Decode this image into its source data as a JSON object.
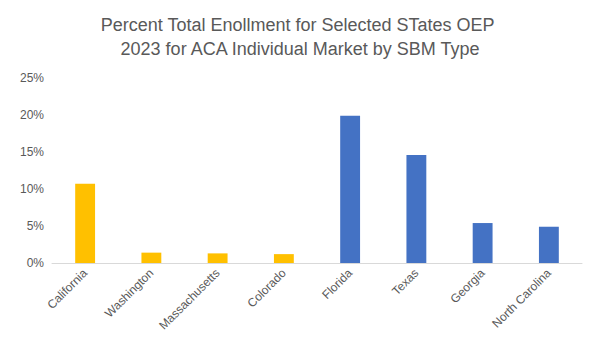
{
  "chart_data": {
    "type": "bar",
    "title": "Percent Total Enollment for Selected STates OEP 2023 for ACA Individual Market by SBM Type",
    "categories": [
      "California",
      "Washington",
      "Massachusetts",
      "Colorado",
      "Florida",
      "Texas",
      "Georgia",
      "North Carolina"
    ],
    "values": [
      10.7,
      1.4,
      1.3,
      1.2,
      19.9,
      14.6,
      5.4,
      4.9
    ],
    "colors": [
      "#ffc000",
      "#ffc000",
      "#ffc000",
      "#ffc000",
      "#4472c4",
      "#4472c4",
      "#4472c4",
      "#4472c4"
    ],
    "ylim": [
      0,
      25
    ],
    "yticks": [
      {
        "value": 0,
        "label": "0%"
      },
      {
        "value": 5,
        "label": "5%"
      },
      {
        "value": 10,
        "label": "10%"
      },
      {
        "value": 15,
        "label": "15%"
      },
      {
        "value": 20,
        "label": "20%"
      },
      {
        "value": 25,
        "label": "25%"
      }
    ],
    "grid": false
  }
}
